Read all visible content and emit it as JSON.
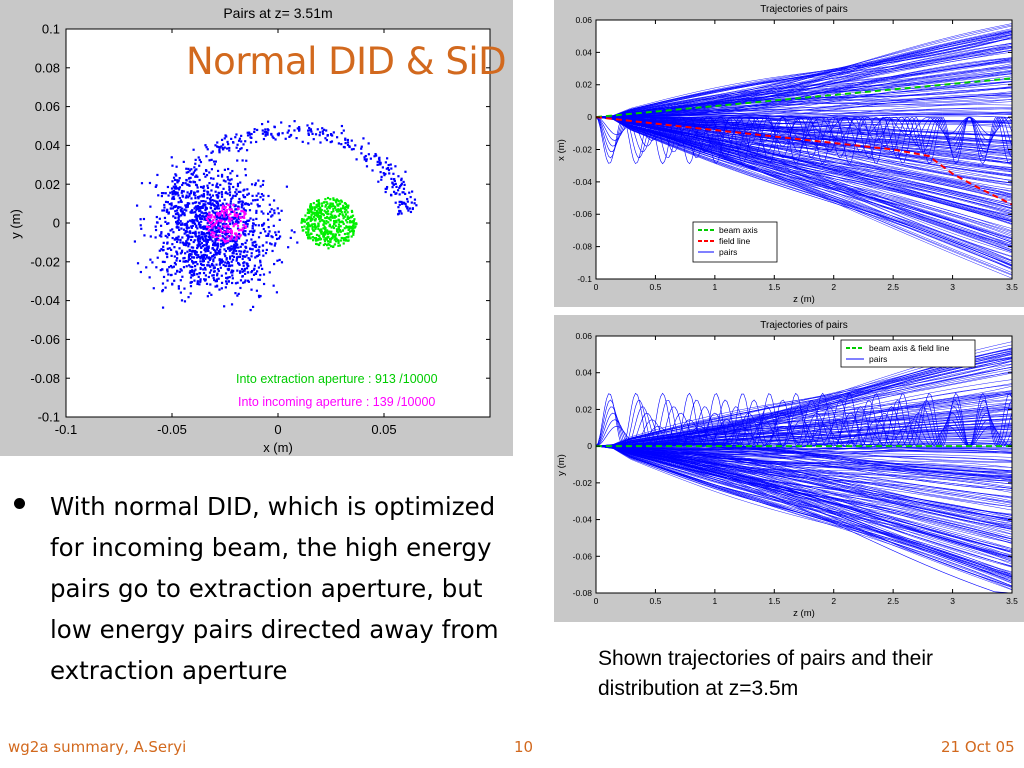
{
  "slide": {
    "title": "Normal DID & SiD",
    "bullet": "With normal DID, which is optimized for incoming beam, the high energy pairs go to extraction aperture, but low energy pairs directed away from extraction aperture",
    "caption": "Shown trajectories of pairs and their distribution at z=3.5m",
    "footer_left": "wg2a summary, A.Seryi",
    "footer_center": "10",
    "footer_right": "21 Oct 05"
  },
  "colors": {
    "accent": "#d2691e",
    "pairs": "#0000ff",
    "beam_axis": "#00cc00",
    "field_line": "#ff0000",
    "incoming": "#ff00ff",
    "extraction": "#00ee00"
  },
  "chart_data": [
    {
      "type": "scatter",
      "title": "Pairs at z= 3.51m",
      "xlabel": "x (m)",
      "ylabel": "y (m)",
      "xlim": [
        -0.1,
        0.1
      ],
      "ylim": [
        -0.1,
        0.1
      ],
      "x_ticks": [
        "-0.1",
        "-0.05",
        "0",
        "0.05"
      ],
      "y_ticks": [
        "0.1",
        "0.08",
        "0.06",
        "0.04",
        "0.02",
        "0",
        "-0.02",
        "-0.04",
        "-0.06",
        "-0.08",
        "-0.1"
      ],
      "series": [
        {
          "kind": "cloud",
          "cx": -0.03,
          "cy": -0.005,
          "rx": 0.05,
          "ry": 0.06,
          "color": "#0000ff"
        },
        {
          "kind": "incoming_aperture",
          "cx": -0.024,
          "cy": 0.0,
          "r": 0.01,
          "color": "#ff00ff"
        },
        {
          "kind": "extraction_aperture",
          "cx": 0.024,
          "cy": 0.0,
          "r": 0.013,
          "color": "#00ee00"
        }
      ],
      "annotations": [
        {
          "text": "Into extraction aperture : 913 /10000",
          "color": "#00cc00"
        },
        {
          "text": "Into incoming aperture : 139 /10000",
          "color": "#ff00ff"
        }
      ],
      "grid": false
    },
    {
      "type": "line",
      "title": "Trajectories of pairs",
      "xlabel": "z (m)",
      "ylabel": "x (m)",
      "xlim": [
        0,
        3.5
      ],
      "ylim": [
        -0.1,
        0.06
      ],
      "x_ticks": [
        "0",
        "0.5",
        "1",
        "1.5",
        "2",
        "2.5",
        "3",
        "3.5"
      ],
      "y_ticks": [
        "0.06",
        "0.04",
        "0.02",
        "0",
        "-0.02",
        "-0.04",
        "-0.06",
        "-0.08",
        "-0.1"
      ],
      "series": [
        {
          "name": "beam axis",
          "color": "#00cc00",
          "dash": true,
          "x": [
            0,
            3.5
          ],
          "y": [
            0,
            0.024
          ]
        },
        {
          "name": "field line",
          "color": "#ff0000",
          "dash": true,
          "x": [
            0,
            0.5,
            1,
            1.5,
            2,
            2.5,
            2.8,
            3.0,
            3.2,
            3.5
          ],
          "y": [
            0,
            -0.004,
            -0.008,
            -0.012,
            -0.016,
            -0.02,
            -0.024,
            -0.035,
            -0.043,
            -0.054
          ]
        },
        {
          "name": "pairs",
          "color": "#0000ff",
          "dash": false,
          "spread_top": 0.055,
          "spread_bottom": -0.1
        }
      ],
      "legend": "bottom-left",
      "grid": false
    },
    {
      "type": "line",
      "title": "Trajectories of pairs",
      "xlabel": "z (m)",
      "ylabel": "y (m)",
      "xlim": [
        0,
        3.5
      ],
      "ylim": [
        -0.08,
        0.06
      ],
      "x_ticks": [
        "0",
        "0.5",
        "1",
        "1.5",
        "2",
        "2.5",
        "3",
        "3.5"
      ],
      "y_ticks": [
        "0.06",
        "0.04",
        "0.02",
        "0",
        "-0.02",
        "-0.04",
        "-0.06",
        "-0.08"
      ],
      "series": [
        {
          "name": "beam axis & field line",
          "color": "#00cc00",
          "dash": true,
          "x": [
            0,
            3.5
          ],
          "y": [
            0,
            0
          ]
        },
        {
          "name": "pairs",
          "color": "#0000ff",
          "dash": false,
          "spread_top": 0.055,
          "spread_bottom": -0.08
        }
      ],
      "legend": "top-right",
      "grid": false
    }
  ]
}
